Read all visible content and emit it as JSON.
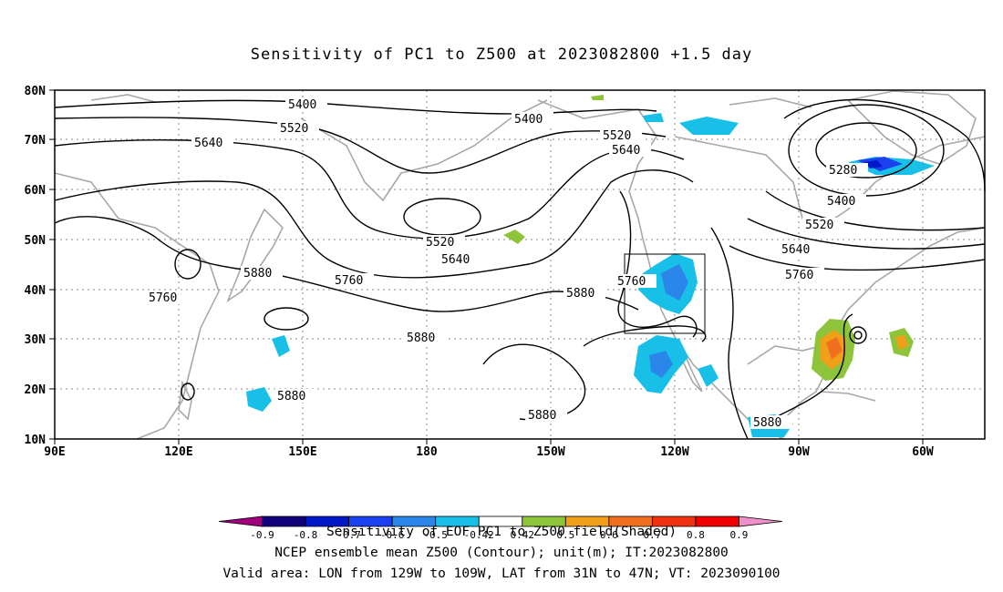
{
  "title": "Sensitivity of PC1 to Z500 at 2023082800 +1.5 day",
  "lat_labels": [
    "80N",
    "70N",
    "60N",
    "50N",
    "40N",
    "30N",
    "20N",
    "10N"
  ],
  "lon_labels": [
    "90E",
    "120E",
    "150E",
    "180",
    "150W",
    "120W",
    "90W",
    "60W"
  ],
  "contour_labels": {
    "c5400a": "5400",
    "c5400b": "5400",
    "c5400c": "5400",
    "c5520a": "5520",
    "c5520b": "5520",
    "c5520c": "5520",
    "c5520d": "5520",
    "c5640a": "5640",
    "c5640b": "5640",
    "c5640c": "5640",
    "c5640d": "5640",
    "c5760a": "5760",
    "c5760b": "5760",
    "c5760c": "5760",
    "c5760d": "5760",
    "c5880a": "5880",
    "c5880b": "5880",
    "c5880c": "5880",
    "c5880d": "5880",
    "c5880e": "5880",
    "c5880f": "5880",
    "c5280": "5280"
  },
  "colorbar": {
    "labels": [
      "-0.9",
      "-0.8",
      "-0.7",
      "-0.6",
      "-0.5",
      "-0.42",
      "0.42",
      "0.5",
      "0.6",
      "0.7",
      "0.8",
      "0.9"
    ],
    "colors": [
      "#a0007e",
      "#10007a",
      "#0018c8",
      "#1a40f0",
      "#2a86e8",
      "#18c0e8",
      "#ffffff",
      "#8ec43a",
      "#f0a018",
      "#f07020",
      "#f03010",
      "#f00000",
      "#f090c8"
    ]
  },
  "captions": {
    "line1": "Sensitivity of EOF PC1 to Z500 field(Shaded)",
    "line2": "NCEP ensemble mean Z500 (Contour); unit(m); IT:2023082800",
    "line3": "Valid area: LON from 129W to 109W, LAT from 31N to 47N; VT: 2023090100"
  },
  "valid_area": {
    "lon_min": -129,
    "lon_max": -109,
    "lat_min": 31,
    "lat_max": 47
  },
  "map_extent": {
    "lon_min": 90,
    "lon_max": 315,
    "lat_min": 10,
    "lat_max": 80
  }
}
